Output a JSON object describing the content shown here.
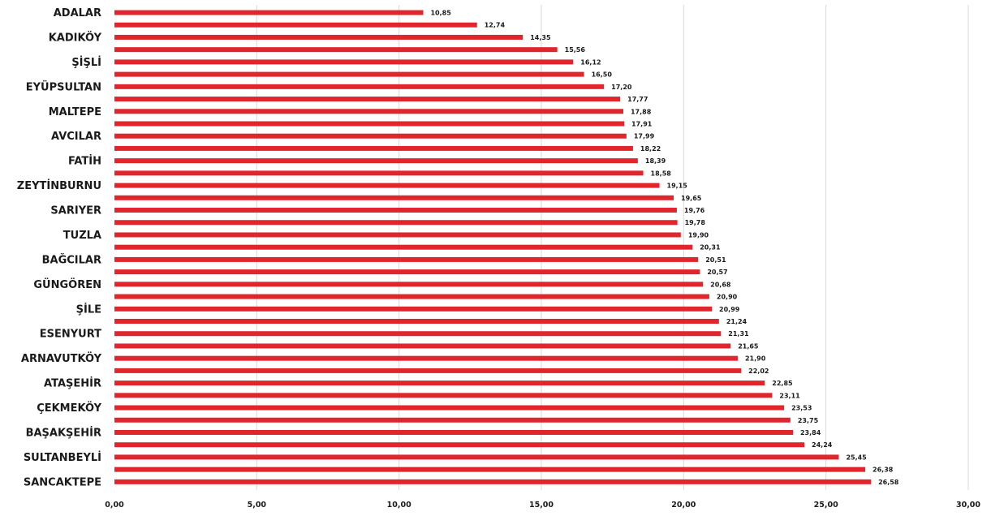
{
  "chart_data": {
    "type": "bar",
    "orientation": "horizontal",
    "bar_color": "#e0252c",
    "categories": [
      "ADALAR",
      "",
      "KADIKÖY",
      "",
      "ŞİŞLİ",
      "",
      "EYÜPSULTAN",
      "",
      "MALTEPE",
      "",
      "AVCILAR",
      "",
      "FATİH",
      "",
      "ZEYTİNBURNU",
      "",
      "SARIYER",
      "",
      "TUZLA",
      "",
      "BAĞCILAR",
      "",
      "GÜNGÖREN",
      "",
      "ŞİLE",
      "",
      "ESENYURT",
      "",
      "ARNAVUTKÖY",
      "",
      "ATAŞEHİR",
      "",
      "ÇEKMEKÖY",
      "",
      "BAŞAKŞEHİR",
      "",
      "SULTANBEYLİ",
      "",
      "SANCAKTEPE"
    ],
    "values": [
      10.85,
      12.74,
      14.35,
      15.56,
      16.12,
      16.5,
      17.2,
      17.77,
      17.88,
      17.91,
      17.99,
      18.22,
      18.39,
      18.58,
      19.15,
      19.65,
      19.76,
      19.78,
      19.9,
      20.31,
      20.51,
      20.57,
      20.68,
      20.9,
      20.99,
      21.24,
      21.31,
      21.65,
      21.9,
      22.02,
      22.85,
      23.11,
      23.53,
      23.75,
      23.84,
      24.24,
      25.45,
      26.38,
      26.58
    ],
    "value_labels": [
      "10,85",
      "12,74",
      "14,35",
      "15,56",
      "16,12",
      "16,50",
      "17,20",
      "17,77",
      "17,88",
      "17,91",
      "17,99",
      "18,22",
      "18,39",
      "18,58",
      "19,15",
      "19,65",
      "19,76",
      "19,78",
      "19,90",
      "20,31",
      "20,51",
      "20,57",
      "20,68",
      "20,90",
      "20,99",
      "21,24",
      "21,31",
      "21,65",
      "21,90",
      "22,02",
      "22,85",
      "23,11",
      "23,53",
      "23,75",
      "23,84",
      "24,24",
      "25,45",
      "26,38",
      "26,58"
    ],
    "xlim": [
      0,
      30
    ],
    "x_ticks": [
      0,
      5,
      10,
      15,
      20,
      25,
      30
    ],
    "x_tick_labels": [
      "0,00",
      "5,00",
      "10,00",
      "15,00",
      "20,00",
      "25,00",
      "30,00"
    ],
    "grid": true,
    "legend": false,
    "title": "",
    "xlabel": "",
    "ylabel": ""
  }
}
